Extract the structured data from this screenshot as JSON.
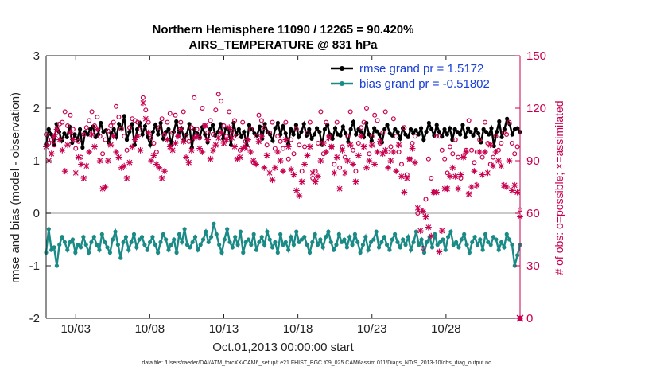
{
  "chart_data": {
    "type": "line",
    "title_line1": "Northern Hemisphere 11090 / 12265 = 90.420%",
    "title_line2": "AIRS_TEMPERATURE @ 831 hPa",
    "ylabel_left": "rmse and bias (model - observation)",
    "ylabel_right": "# of obs: o=possible; ×=assimilated",
    "xlabel": "Oct.01,2013 00:00:00 start",
    "footnote": "data file: /Users/raeder/DAI/ATM_forcXX/CAM6_setup/f.e21.FHIST_BGC.f09_025.CAM6assim.011/Diags_NTrS_2013-10/obs_diag_output.nc",
    "x_range": [
      1,
      33
    ],
    "ylim_left": [
      -2,
      3
    ],
    "ylim_right": [
      0,
      150
    ],
    "x_ticks": [
      3,
      8,
      13,
      18,
      23,
      28
    ],
    "x_tick_labels": [
      "10/03",
      "10/08",
      "10/13",
      "10/18",
      "10/23",
      "10/28"
    ],
    "y_ticks_left": [
      -2,
      -1,
      0,
      1,
      2,
      3
    ],
    "y_ticks_right": [
      0,
      30,
      60,
      90,
      120,
      150
    ],
    "grid": false,
    "zero_line": true,
    "legend_position": "top-right",
    "series": [
      {
        "name": "rmse",
        "legend": "rmse grand pr = 1.5172",
        "axis": "left",
        "color": "#000000",
        "values": [
          1.32,
          1.6,
          1.5,
          1.3,
          1.7,
          1.55,
          1.38,
          1.52,
          1.45,
          1.65,
          1.34,
          1.5,
          1.4,
          1.6,
          1.25,
          1.55,
          1.5,
          1.6,
          1.65,
          1.45,
          1.5,
          1.72,
          1.55,
          1.58,
          1.35,
          1.52,
          1.6,
          1.45,
          1.7,
          1.62,
          1.85,
          1.4,
          1.55,
          1.7,
          1.3,
          1.6,
          1.72,
          1.5,
          1.66,
          1.45,
          1.3,
          1.55,
          1.68,
          1.5,
          1.72,
          1.42,
          1.55,
          1.6,
          1.3,
          1.55,
          1.75,
          1.52,
          1.62,
          1.4,
          1.5,
          1.7,
          1.25,
          1.6,
          1.52,
          1.45,
          1.64,
          1.5,
          1.35,
          1.6,
          1.68,
          1.48,
          1.55,
          1.7,
          1.42,
          1.62,
          1.6,
          1.3,
          1.72,
          1.5,
          1.6,
          1.45,
          1.55,
          1.3,
          1.68,
          1.6,
          1.52,
          1.48,
          1.65,
          1.42,
          1.7,
          1.55,
          1.5,
          1.38,
          1.62,
          1.72,
          1.5,
          1.66,
          1.52,
          1.32,
          1.6,
          1.5,
          1.68,
          1.45,
          1.55,
          1.7,
          1.48,
          1.6,
          1.42,
          1.5,
          1.62,
          1.55,
          1.3,
          1.6,
          1.68,
          1.5,
          1.42,
          1.62,
          1.5,
          1.48,
          1.65,
          1.52,
          1.36,
          1.6,
          1.74,
          1.5,
          1.6,
          1.55,
          1.45,
          1.72,
          1.5,
          1.38,
          1.62,
          1.56,
          1.5,
          1.35,
          1.6,
          1.68,
          1.52,
          1.48,
          1.6,
          1.55,
          1.42,
          1.62,
          1.5,
          1.45,
          1.6,
          1.52,
          1.58,
          1.5,
          1.62,
          1.4,
          1.55,
          1.72,
          1.6,
          1.48,
          1.68,
          1.55,
          1.46,
          1.6,
          1.5,
          1.62,
          1.4,
          1.6,
          1.55,
          1.5,
          1.68,
          1.45,
          1.62,
          1.55,
          1.48,
          1.6,
          1.52,
          1.35,
          1.6,
          1.55,
          1.5,
          1.62,
          1.28,
          1.55,
          1.75,
          1.45,
          1.6,
          1.8,
          1.7,
          1.5,
          1.6,
          1.62,
          1.55
        ]
      },
      {
        "name": "bias",
        "legend": "bias grand pr = -0.51802",
        "axis": "left",
        "color": "#1a8a86",
        "values": [
          -0.75,
          -0.3,
          -0.7,
          -0.65,
          -1.0,
          -0.6,
          -0.45,
          -0.55,
          -0.7,
          -0.55,
          -0.5,
          -0.75,
          -0.6,
          -0.65,
          -0.45,
          -0.6,
          -0.75,
          -0.55,
          -0.45,
          -0.6,
          -0.7,
          -0.4,
          -0.55,
          -0.65,
          -0.75,
          -0.5,
          -0.35,
          -0.6,
          -0.85,
          -0.55,
          -0.45,
          -0.7,
          -0.55,
          -0.4,
          -0.65,
          -0.5,
          -0.45,
          -0.6,
          -0.7,
          -0.55,
          -0.45,
          -0.6,
          -0.75,
          -0.55,
          -0.4,
          -0.5,
          -0.7,
          -0.6,
          -0.5,
          -0.75,
          -0.4,
          -0.55,
          -0.3,
          -0.6,
          -0.65,
          -0.55,
          -0.45,
          -0.7,
          -0.6,
          -0.5,
          -0.35,
          -0.55,
          -0.45,
          -0.2,
          -0.4,
          -0.6,
          -0.75,
          -0.5,
          -0.3,
          -0.55,
          -0.65,
          -0.45,
          -0.6,
          -0.35,
          -0.75,
          -0.55,
          -0.5,
          -0.6,
          -0.4,
          -0.7,
          -0.55,
          -0.45,
          -0.6,
          -0.35,
          -0.5,
          -0.65,
          -0.55,
          -0.75,
          -0.4,
          -0.6,
          -0.55,
          -0.7,
          -0.45,
          -0.6,
          -0.35,
          -0.55,
          -0.5,
          -0.45,
          -0.6,
          -0.75,
          -0.55,
          -0.4,
          -0.6,
          -0.5,
          -0.65,
          -0.45,
          -0.35,
          -0.55,
          -0.7,
          -0.6,
          -0.4,
          -0.55,
          -0.5,
          -0.65,
          -0.45,
          -0.6,
          -0.4,
          -0.55,
          -0.75,
          -0.6,
          -0.45,
          -0.7,
          -0.55,
          -0.5,
          -0.35,
          -0.65,
          -0.55,
          -0.45,
          -0.6,
          -0.7,
          -0.5,
          -0.4,
          -0.55,
          -0.65,
          -0.5,
          -0.6,
          -0.45,
          -0.7,
          -0.55,
          -0.35,
          -0.6,
          -0.5,
          -0.75,
          -0.55,
          -0.45,
          -0.65,
          -0.4,
          -0.6,
          -0.55,
          -0.5,
          -0.7,
          -0.45,
          -0.35,
          -0.6,
          -0.55,
          -0.65,
          -0.5,
          -0.4,
          -0.6,
          -0.75,
          -0.55,
          -0.45,
          -0.6,
          -0.5,
          -0.7,
          -0.4,
          -0.55,
          -0.6,
          -0.45,
          -0.5,
          -0.7,
          -0.55,
          -0.65,
          -0.4,
          -0.5,
          -0.6,
          -1.0,
          -0.8,
          -0.6
        ]
      },
      {
        "name": "obs possible",
        "marker": "o",
        "axis": "right",
        "color": "#c8004f",
        "values": [
          105,
          100,
          102,
          99,
          106,
          111,
          112,
          118,
          110,
          116,
          108,
          97,
          101,
          92,
          105,
          109,
          113,
          118,
          110,
          115,
          104,
          94,
          102,
          107,
          110,
          112,
          121,
          115,
          108,
          104,
          96,
          109,
          114,
          113,
          112,
          108,
          126,
          119,
          112,
          103,
          100,
          95,
          109,
          114,
          105,
          112,
          117,
          106,
          116,
          104,
          112,
          118,
          104,
          101,
          109,
          126,
          108,
          103,
          120,
          110,
          106,
          113,
          105,
          119,
          128,
          124,
          110,
          104,
          118,
          107,
          113,
          104,
          96,
          112,
          101,
          97,
          108,
          89,
          104,
          116,
          113,
          109,
          99,
          106,
          112,
          97,
          104,
          101,
          97,
          112,
          91,
          102,
          94,
          108,
          99,
          84,
          98,
          106,
          112,
          80,
          84,
          100,
          118,
          94,
          112,
          104,
          98,
          88,
          112,
          86,
          98,
          92,
          104,
          118,
          96,
          84,
          100,
          109,
          112,
          120,
          94,
          104,
          116,
          113,
          100,
          106,
          118,
          95,
          98,
          114,
          104,
          95,
          88,
          109,
          82,
          91,
          100,
          104,
          60,
          62,
          40,
          68,
          91,
          80,
          72,
          104,
          104,
          96,
          91,
          83,
          98,
          94,
          102,
          92,
          80,
          93,
          96,
          113,
          96,
          89,
          95,
          102,
          92,
          112,
          100,
          88,
          92,
          104,
          96,
          100,
          106,
          105,
          112,
          100,
          94,
          98,
          62
        ]
      },
      {
        "name": "obs assimilated",
        "marker": "x",
        "axis": "right",
        "color": "#c8004f",
        "values": [
          98,
          90,
          94,
          104,
          108,
          102,
          96,
          84,
          99,
          106,
          102,
          83,
          92,
          88,
          80,
          87,
          95,
          105,
          98,
          108,
          90,
          74,
          75,
          90,
          99,
          104,
          95,
          92,
          86,
          87,
          80,
          89,
          98,
          102,
          104,
          96,
          123,
          114,
          106,
          90,
          93,
          88,
          86,
          80,
          84,
          102,
          98,
          96,
          100,
          104,
          108,
          101,
          92,
          89,
          96,
          103,
          104,
          97,
          95,
          110,
          102,
          91,
          96,
          99,
          103,
          106,
          100,
          102,
          109,
          103,
          98,
          91,
          92,
          97,
          98,
          102,
          95,
          90,
          88,
          101,
          104,
          86,
          93,
          83,
          79,
          86,
          95,
          90,
          84,
          102,
          98,
          85,
          82,
          73,
          70,
          78,
          88,
          93,
          98,
          83,
          78,
          81,
          90,
          100,
          95,
          103,
          98,
          83,
          92,
          74,
          96,
          83,
          90,
          99,
          88,
          78,
          93,
          104,
          98,
          86,
          90,
          99,
          88,
          95,
          101,
          94,
          96,
          86,
          90,
          95,
          84,
          99,
          81,
          72,
          80,
          91,
          97,
          89,
          63,
          50,
          61,
          58,
          52,
          47,
          72,
          72,
          38,
          50,
          74,
          74,
          81,
          86,
          81,
          74,
          82,
          92,
          95,
          71,
          75,
          84,
          76,
          95,
          82,
          95,
          83,
          99,
          87,
          95,
          90,
          87,
          76,
          75,
          90,
          73,
          76,
          72,
          58
        ]
      }
    ]
  }
}
